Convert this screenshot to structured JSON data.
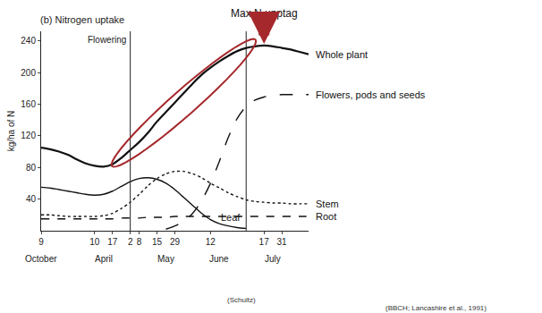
{
  "chart_data": {
    "type": "line",
    "title": "(b) Nitrogen uptake",
    "y_label": "kg/ha of N",
    "categories": [
      "9",
      null,
      null,
      null,
      null,
      null,
      "10",
      null,
      "17",
      null,
      "2",
      "8",
      null,
      "15",
      null,
      "29",
      null,
      null,
      null,
      "12",
      null,
      null,
      null,
      null,
      null,
      "17",
      null,
      "31",
      null,
      null,
      null
    ],
    "series": [
      {
        "name": "Whole plant",
        "color": "#111111",
        "line_style": "solid",
        "values": [
          105,
          103,
          100,
          96,
          90,
          85,
          82,
          81,
          84,
          92,
          102,
          112,
          124,
          138,
          150,
          162,
          174,
          186,
          197,
          206,
          214,
          221,
          227,
          231,
          233,
          234,
          233,
          231,
          229,
          226,
          223
        ]
      },
      {
        "name": "Flowers, pods and seeds",
        "color": "#111111",
        "line_style": "longdash",
        "values": [
          null,
          null,
          null,
          null,
          null,
          null,
          null,
          null,
          null,
          null,
          null,
          null,
          null,
          null,
          2,
          6,
          12,
          22,
          38,
          60,
          88,
          118,
          142,
          157,
          165,
          169,
          171,
          172,
          172,
          172,
          172
        ]
      },
      {
        "name": "Stem",
        "color": "#111111",
        "line_style": "dot",
        "values": [
          20,
          20,
          19,
          18,
          18,
          18,
          18,
          19,
          22,
          28,
          36,
          46,
          57,
          66,
          72,
          75,
          75,
          72,
          67,
          60,
          54,
          48,
          43,
          39,
          37,
          36,
          35,
          35,
          34,
          34,
          34
        ]
      },
      {
        "name": "Leaf",
        "color": "#111111",
        "line_style": "solid",
        "values": [
          55,
          54,
          52,
          50,
          48,
          46,
          45,
          46,
          50,
          56,
          62,
          66,
          67,
          65,
          60,
          52,
          42,
          32,
          22,
          14,
          9,
          6,
          4,
          3,
          null,
          null,
          null,
          null,
          null,
          null,
          null
        ]
      },
      {
        "name": "Root",
        "color": "#111111",
        "line_style": "dash",
        "values": [
          15,
          15,
          15,
          15,
          15,
          15,
          15,
          15,
          15,
          16,
          16,
          16,
          17,
          17,
          17,
          18,
          18,
          18,
          18,
          18,
          18,
          18,
          18,
          18,
          18,
          18,
          18,
          18,
          18,
          18,
          18
        ]
      }
    ],
    "ylim": [
      0,
      252
    ],
    "yticks": [
      40,
      80,
      120,
      160,
      200,
      240
    ],
    "grid": false,
    "months": [
      {
        "label": "October",
        "x": 0
      },
      {
        "label": "April",
        "x": 7
      },
      {
        "label": "May",
        "x": 14
      },
      {
        "label": "June",
        "x": 20
      },
      {
        "label": "July",
        "x": 26
      }
    ],
    "vlines": [
      {
        "x": 10,
        "label": "Flowering"
      },
      {
        "x": 23
      }
    ],
    "highlight": {
      "text": "Max N upptag",
      "x": 25,
      "color": "#a5282c"
    },
    "sources": [
      "(Schultz)",
      "(BBCH; Lancashire et al., 1991)"
    ]
  }
}
